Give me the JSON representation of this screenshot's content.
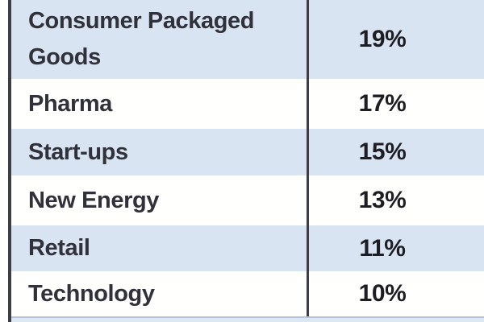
{
  "table": {
    "rows": [
      {
        "sector": "Consumer Packaged Goods",
        "value": "19%"
      },
      {
        "sector": "Pharma",
        "value": "17%"
      },
      {
        "sector": "Start-ups",
        "value": "15%"
      },
      {
        "sector": "New Energy",
        "value": "13%"
      },
      {
        "sector": "Retail",
        "value": "11%"
      },
      {
        "sector": "Technology",
        "value": "10%"
      }
    ]
  },
  "chart_data": {
    "type": "table",
    "categories": [
      "Consumer Packaged Goods",
      "Pharma",
      "Start-ups",
      "New Energy",
      "Retail",
      "Technology"
    ],
    "values": [
      19,
      17,
      15,
      13,
      11,
      10
    ],
    "value_format": "percent",
    "title": "",
    "layout": "two-column table, alternating row shading, values column right of divider"
  },
  "colors": {
    "row_blue": "#d8e4f2",
    "row_white": "#fffffd",
    "border_dark": "#3d3e44",
    "sector_text": "#30313a",
    "value_text": "#1e1d23",
    "bottom_separator": "#b4c5db",
    "bottom_band": "#dce7f4"
  }
}
